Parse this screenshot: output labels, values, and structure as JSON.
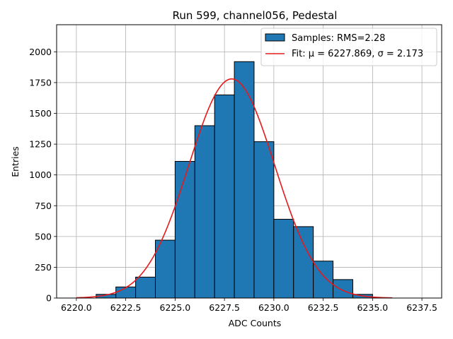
{
  "chart_data": {
    "type": "bar",
    "title": "Run 599, channel056, Pedestal",
    "xlabel": "ADC Counts",
    "ylabel": "Entries",
    "xlim": [
      6219.0,
      6238.5
    ],
    "ylim": [
      0,
      2220
    ],
    "grid": true,
    "legend_position": "top-right",
    "x_ticks": [
      6220.0,
      6222.5,
      6225.0,
      6227.5,
      6230.0,
      6232.5,
      6235.0,
      6237.5
    ],
    "x_tick_labels": [
      "6220.0",
      "6222.5",
      "6225.0",
      "6227.5",
      "6230.0",
      "6232.5",
      "6235.0",
      "6237.5"
    ],
    "y_ticks": [
      0,
      250,
      500,
      750,
      1000,
      1250,
      1500,
      1750,
      2000
    ],
    "y_tick_labels": [
      "0",
      "250",
      "500",
      "750",
      "1000",
      "1250",
      "1500",
      "1750",
      "2000"
    ],
    "histogram": {
      "name": "Samples: RMS=2.28",
      "color": "#1f77b4",
      "edge_color": "#000000",
      "bin_edges": [
        6221,
        6222,
        6223,
        6224,
        6225,
        6226,
        6227,
        6228,
        6229,
        6230,
        6231,
        6232,
        6233,
        6234,
        6235
      ],
      "values": [
        30,
        90,
        170,
        470,
        1110,
        1400,
        1650,
        1920,
        1270,
        640,
        580,
        300,
        150,
        30
      ]
    },
    "fit": {
      "name": "Fit: μ = 6227.869, σ = 2.173",
      "color": "#e41a1c",
      "mu": 6227.869,
      "sigma": 2.173,
      "amplitude": 1780,
      "x_range": [
        6220.0,
        6236.0
      ]
    },
    "legend": {
      "entries": [
        "Samples: RMS=2.28",
        "Fit: μ = 6227.869, σ = 2.173"
      ]
    }
  }
}
